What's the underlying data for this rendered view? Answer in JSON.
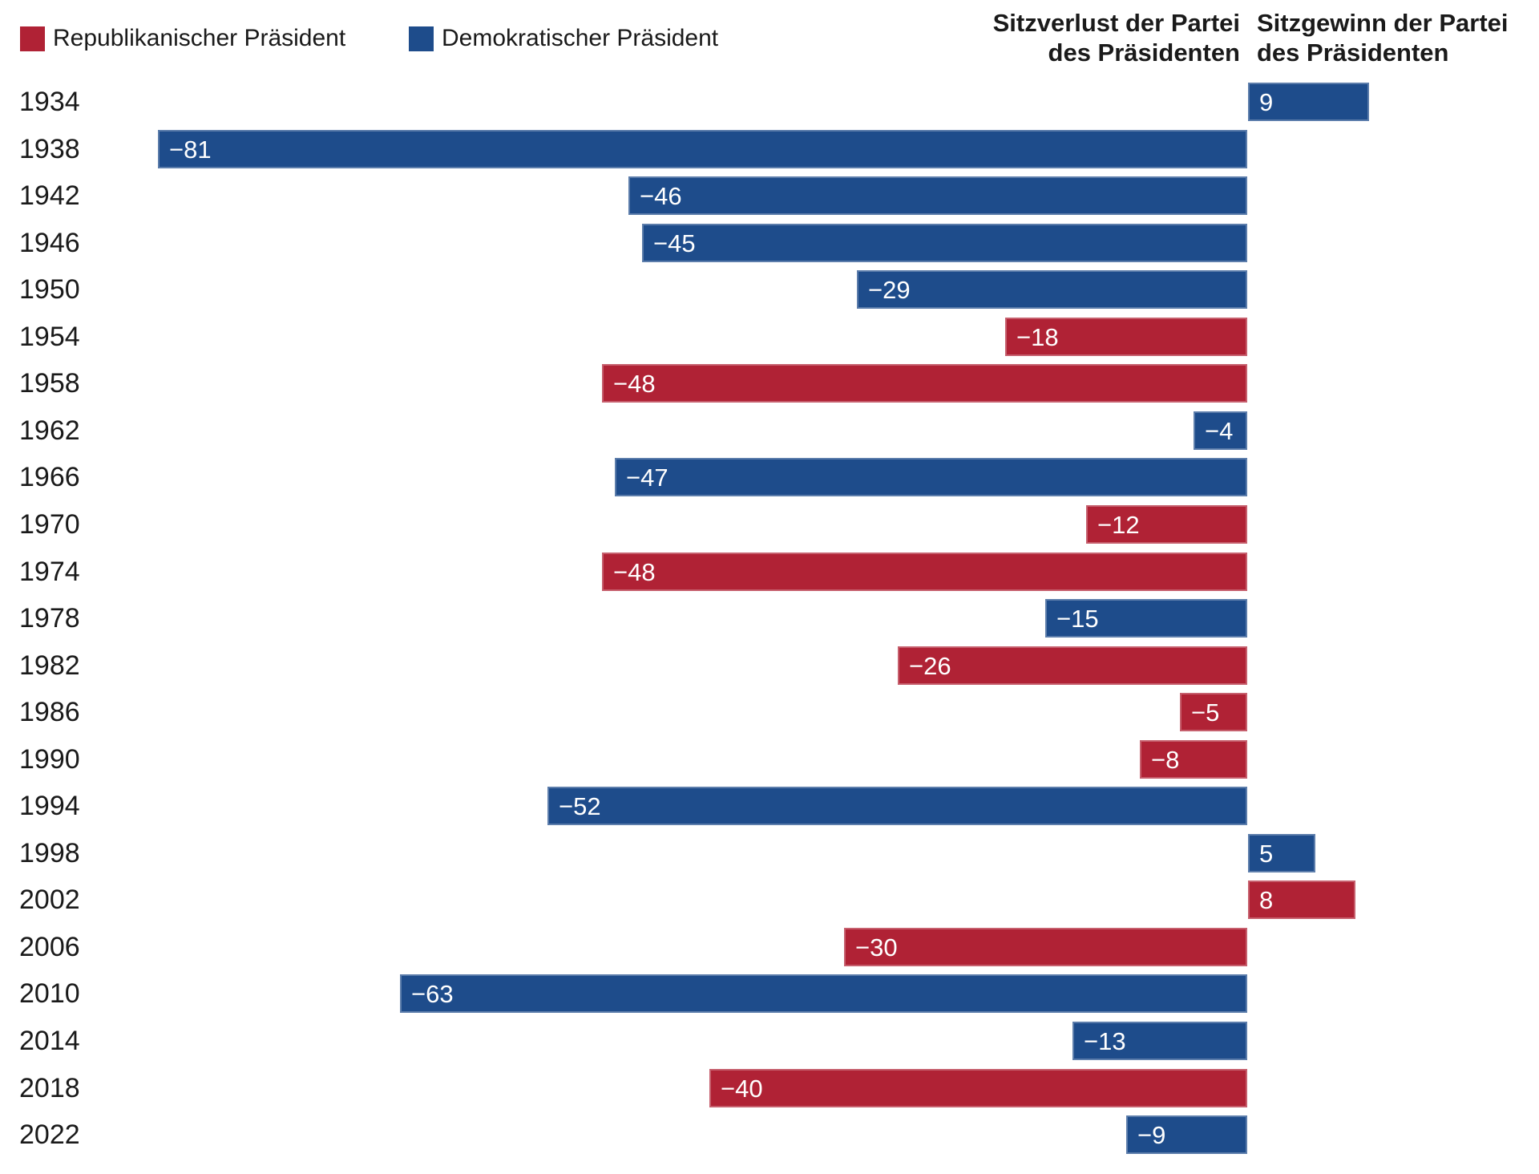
{
  "legend": {
    "republican_label": "Republikanischer Präsident",
    "democrat_label": "Demokratischer Präsident"
  },
  "headers": {
    "loss": "Sitzverlust der Partei\ndes Präsidenten",
    "gain": "Sitzgewinn der Partei\ndes Präsidenten"
  },
  "colors": {
    "republican": "#b02235",
    "democrat": "#1e4c8b",
    "text": "#1a1a1a",
    "bar_label": "#ffffff",
    "background": "#ffffff"
  },
  "chart_data": {
    "type": "bar",
    "orientation": "horizontal",
    "diverging": true,
    "title": "",
    "negative_side_label": "Sitzverlust der Partei des Präsidenten",
    "positive_side_label": "Sitzgewinn der Partei des Präsidenten",
    "xlim": [
      -85,
      12
    ],
    "categories": [
      "1934",
      "1938",
      "1942",
      "1946",
      "1950",
      "1954",
      "1958",
      "1962",
      "1966",
      "1970",
      "1974",
      "1978",
      "1982",
      "1986",
      "1990",
      "1994",
      "1998",
      "2002",
      "2006",
      "2010",
      "2014",
      "2018",
      "2022"
    ],
    "values": [
      9,
      -81,
      -46,
      -45,
      -29,
      -18,
      -48,
      -4,
      -47,
      -12,
      -48,
      -15,
      -26,
      -5,
      -8,
      -52,
      5,
      8,
      -30,
      -63,
      -13,
      -40,
      -9
    ],
    "parties": [
      "democrat",
      "democrat",
      "democrat",
      "democrat",
      "democrat",
      "republican",
      "republican",
      "democrat",
      "democrat",
      "republican",
      "republican",
      "democrat",
      "republican",
      "republican",
      "republican",
      "democrat",
      "democrat",
      "republican",
      "republican",
      "democrat",
      "democrat",
      "republican",
      "democrat"
    ]
  }
}
